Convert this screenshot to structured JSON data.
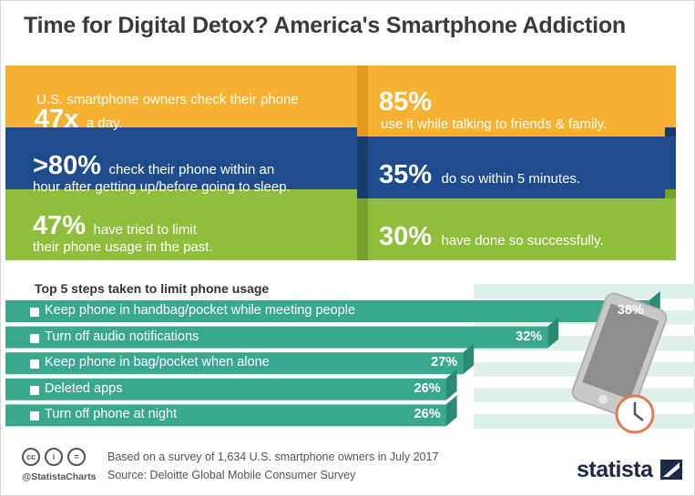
{
  "title": "Time for Digital Detox? America's Smartphone Addiction",
  "stats": {
    "row1_left": {
      "pre": "U.S. smartphone owners check their phone",
      "big": "47x",
      "post": "a day."
    },
    "row1_right": {
      "big": "85%",
      "post": "use it while talking to friends & family."
    },
    "row2_left": {
      "big": ">80%",
      "line1": "check their phone within an",
      "line2": "hour after getting up/before going to sleep."
    },
    "row2_right": {
      "big": "35%",
      "post": "do so within 5 minutes."
    },
    "row3_left": {
      "big": "47%",
      "line1": "have tried to limit",
      "line2": "their phone usage in the past."
    },
    "row3_right": {
      "big": "30%",
      "post": "have done so successfully."
    }
  },
  "colors": {
    "orange": "#f7b233",
    "orange_dark": "#e39a1c",
    "blue": "#1f4c8c",
    "blue_dark": "#173a6c",
    "green": "#8fbe3c",
    "green_dark": "#76a22b",
    "teal": "#3aa88c",
    "teal_dark": "#2a8a72",
    "stripe": "#dff0ea"
  },
  "chart_data": {
    "type": "bar",
    "title": "Top 5 steps taken to limit phone usage",
    "categories": [
      "Keep phone in handbag/pocket while meeting people",
      "Turn off audio notifications",
      "Keep phone in bag/pocket when alone",
      "Deleted apps",
      "Turn off phone at night"
    ],
    "values": [
      38,
      32,
      27,
      26,
      26
    ],
    "value_labels": [
      "38%",
      "32%",
      "27%",
      "26%",
      "26%"
    ]
  },
  "footer": {
    "note1": "Based on a survey of 1,634 U.S. smartphone owners in July 2017",
    "note2": "Source: Deloitte Global Mobile Consumer Survey",
    "handle": "@StatistaCharts",
    "cc1": "cc",
    "cc2": "i",
    "cc3": "=",
    "brand": "statista"
  }
}
